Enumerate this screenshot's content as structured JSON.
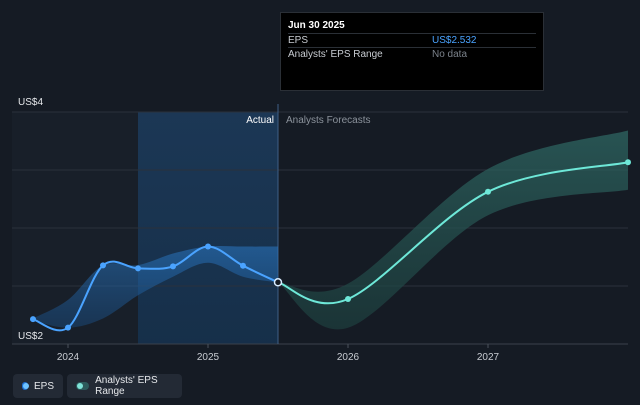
{
  "chart_data": {
    "type": "line",
    "y_axis": {
      "min_label": "US$2",
      "max_label": "US$4",
      "ylim": [
        2,
        4
      ],
      "grid": true
    },
    "x_axis": {
      "tick_labels": [
        "2024",
        "2025",
        "2026",
        "2027"
      ],
      "tick_years": [
        2024,
        2025,
        2026,
        2027
      ],
      "xlim": [
        2023.6,
        2028.0
      ]
    },
    "sections": {
      "actual_label": "Actual",
      "forecast_label": "Analysts Forecasts",
      "divider_x": 2025.5
    },
    "series": [
      {
        "name": "EPS",
        "color": "#4aa3ff",
        "x": [
          2023.75,
          2024.0,
          2024.25,
          2024.5,
          2024.75,
          2025.0,
          2025.25,
          2025.5
        ],
        "y": [
          2.214,
          2.141,
          2.678,
          2.652,
          2.669,
          2.841,
          2.675,
          2.532
        ]
      },
      {
        "name": "EPS Forecast",
        "color": "#6ee8d8",
        "x": [
          2025.5,
          2026.0,
          2027.0,
          2028.0
        ],
        "y": [
          2.532,
          2.388,
          3.312,
          3.567
        ]
      },
      {
        "name": "Analysts' EPS Range",
        "color": "#2d5a5b",
        "x": [
          2025.5,
          2026.0,
          2027.0,
          2028.0
        ],
        "y_low": [
          2.532,
          2.14,
          3.11,
          3.33
        ],
        "y_high": [
          2.532,
          2.52,
          3.51,
          3.84
        ]
      }
    ],
    "legend": {
      "placement": "bottom-left",
      "items": [
        "EPS",
        "Analysts' EPS Range"
      ]
    }
  },
  "tooltip": {
    "date": "Jun 30 2025",
    "rows": [
      {
        "key": "EPS",
        "value": "US$2.532"
      },
      {
        "key": "Analysts' EPS Range",
        "value": "No data"
      }
    ]
  },
  "legend_labels": {
    "eps": "EPS",
    "range": "Analysts' EPS Range"
  }
}
